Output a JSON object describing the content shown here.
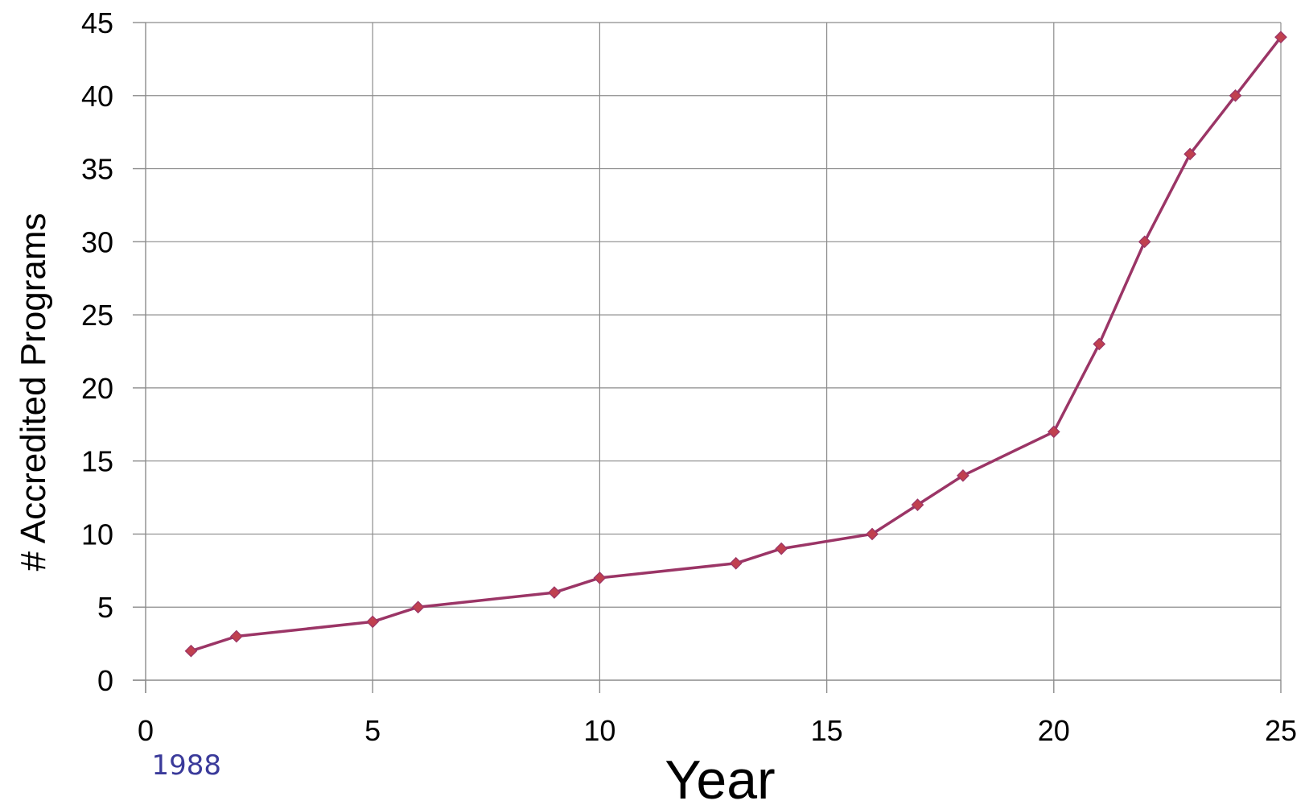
{
  "chart_data": {
    "type": "line",
    "title": "",
    "xlabel": "Year",
    "ylabel": "# Accredited Programs",
    "xlim": [
      0,
      25
    ],
    "ylim": [
      0,
      45
    ],
    "x_ticks": [
      0,
      5,
      10,
      15,
      20,
      25
    ],
    "y_ticks": [
      0,
      5,
      10,
      15,
      20,
      25,
      30,
      35,
      40,
      45
    ],
    "grid": true,
    "legend": "none",
    "series": [
      {
        "color": "#9b3566",
        "marker_color": "#c0404f",
        "x": [
          1,
          2,
          5,
          6,
          9,
          10,
          13,
          14,
          16,
          17,
          18,
          20,
          21,
          22,
          23,
          24,
          25
        ],
        "y": [
          2,
          3,
          4,
          5,
          6,
          7,
          8,
          9,
          10,
          12,
          14,
          17,
          23,
          30,
          36,
          40,
          44
        ]
      }
    ],
    "annotations": [
      {
        "text": "1988",
        "x": 1,
        "color": "#3a3a9a"
      }
    ]
  }
}
